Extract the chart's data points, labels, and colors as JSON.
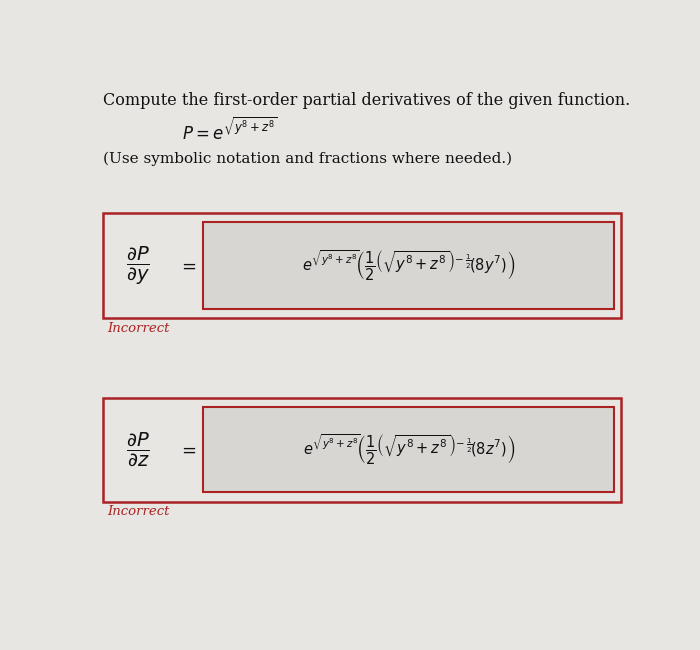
{
  "title_text": "Compute the first-order partial derivatives of the given function.",
  "function_label": "$P = e^{\\sqrt{y^8+z^8}}$",
  "instruction_text": "(Use symbolic notation and fractions where needed.)",
  "row1_lhs": "$\\dfrac{\\partial P}{\\partial y}$",
  "row1_rhs": "$e^{\\sqrt{y^8+z^8}}\\!\\left(\\dfrac{1}{2}\\left(\\sqrt{y^8+z^8}\\right)^{\\!-\\frac{1}{2}}\\!(8y^7)\\right)$",
  "row2_lhs": "$\\dfrac{\\partial P}{\\partial z}$",
  "row2_rhs": "$e^{\\sqrt{y^8+z^8}}\\!\\left(\\dfrac{1}{2}\\left(\\sqrt{y^8+z^8}\\right)^{\\!-\\frac{1}{2}}\\!(8z^7)\\right)$",
  "incorrect_label": "Incorrect",
  "bg_color": "#e8e6e3",
  "outer_box_bg": "#e8e6e3",
  "inner_box_bg": "#d8d6d3",
  "box_border_color": "#aa2222",
  "incorrect_color": "#aa2222",
  "text_color": "#111111",
  "title_fontsize": 11.5,
  "func_fontsize": 12,
  "instr_fontsize": 11,
  "lhs_fontsize": 14,
  "rhs_fontsize": 10.5,
  "eq_fontsize": 13,
  "incorrect_fontsize": 9.5
}
